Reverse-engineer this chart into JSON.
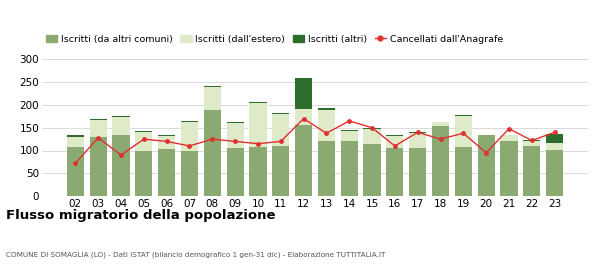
{
  "years": [
    "02",
    "03",
    "04",
    "05",
    "06",
    "07",
    "08",
    "09",
    "10",
    "11",
    "12",
    "13",
    "14",
    "15",
    "16",
    "17",
    "18",
    "19",
    "20",
    "21",
    "22",
    "23"
  ],
  "iscritti_altri_comuni": [
    108,
    130,
    133,
    100,
    104,
    100,
    190,
    105,
    108,
    110,
    155,
    120,
    120,
    114,
    105,
    105,
    154,
    107,
    133,
    120,
    110,
    102
  ],
  "iscritti_estero": [
    22,
    38,
    40,
    40,
    27,
    63,
    50,
    55,
    97,
    70,
    36,
    70,
    23,
    33,
    27,
    33,
    8,
    68,
    0,
    13,
    10,
    15
  ],
  "iscritti_altri": [
    3,
    2,
    2,
    3,
    2,
    2,
    2,
    2,
    2,
    3,
    69,
    3,
    2,
    3,
    2,
    2,
    0,
    3,
    2,
    2,
    2,
    20
  ],
  "cancellati": [
    72,
    128,
    90,
    125,
    120,
    110,
    125,
    120,
    115,
    120,
    170,
    138,
    165,
    150,
    110,
    140,
    125,
    138,
    95,
    148,
    122,
    140
  ],
  "color_altri_comuni": "#8aaa72",
  "color_estero": "#deeac8",
  "color_altri": "#2d6e2d",
  "color_cancellati": "#e03030",
  "legend_labels": [
    "Iscritti (da altri comuni)",
    "Iscritti (dall'estero)",
    "Iscritti (altri)",
    "Cancellati dall'Anagrafe"
  ],
  "title": "Flusso migratorio della popolazione",
  "subtitle": "COMUNE DI SOMAGLIA (LO) - Dati ISTAT (bilancio demografico 1 gen-31 dic) - Elaborazione TUTTITALIA.IT",
  "ylim": [
    0,
    320
  ],
  "yticks": [
    0,
    50,
    100,
    150,
    200,
    250,
    300
  ],
  "background_color": "#ffffff",
  "grid_color": "#cccccc"
}
